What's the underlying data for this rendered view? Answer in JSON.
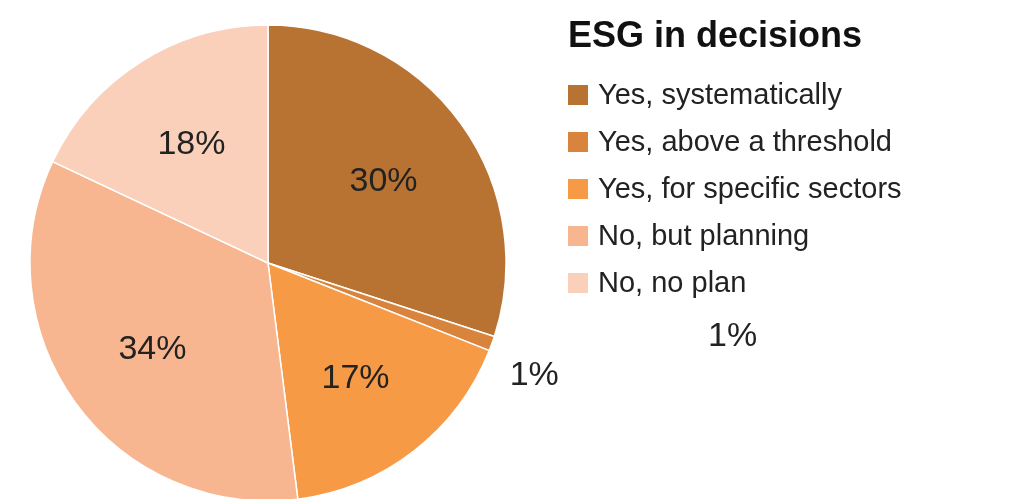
{
  "chart_data": {
    "type": "pie",
    "title": "ESG in decisions",
    "categories": [
      "Yes, systematically",
      "Yes, above a threshold",
      "Yes, for specific sectors",
      "No, but planning",
      "No, no plan"
    ],
    "values": [
      30,
      1,
      17,
      34,
      18
    ],
    "value_labels": [
      "30%",
      "1%",
      "17%",
      "34%",
      "18%"
    ],
    "colors": [
      "#b87333",
      "#d9843c",
      "#f79a46",
      "#f8b690",
      "#fbd0bb"
    ],
    "legend": "right",
    "annotations": [
      "1%"
    ]
  }
}
